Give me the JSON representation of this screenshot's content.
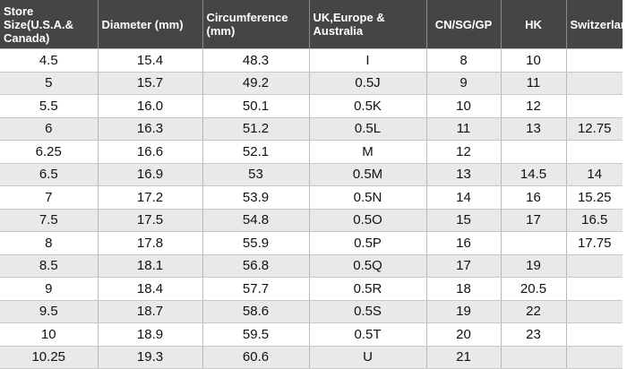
{
  "headers": {
    "store_size": "Store Size(U.S.A.& Canada)",
    "diameter": "Diameter (mm)",
    "circumference": "Circumference (mm)",
    "uk": "UK,Europe & Australia",
    "cn": "CN/SG/GP",
    "hk": "HK",
    "switzerland": "Switzerland"
  },
  "rows": [
    {
      "store": "4.5",
      "diameter": "15.4",
      "circumference": "48.3",
      "uk": "I",
      "cn": "8",
      "hk": "10",
      "ch": ""
    },
    {
      "store": "5",
      "diameter": "15.7",
      "circumference": "49.2",
      "uk": "0.5J",
      "cn": "9",
      "hk": "11",
      "ch": ""
    },
    {
      "store": "5.5",
      "diameter": "16.0",
      "circumference": "50.1",
      "uk": "0.5K",
      "cn": "10",
      "hk": "12",
      "ch": ""
    },
    {
      "store": "6",
      "diameter": "16.3",
      "circumference": "51.2",
      "uk": "0.5L",
      "cn": "11",
      "hk": "13",
      "ch": "12.75"
    },
    {
      "store": "6.25",
      "diameter": "16.6",
      "circumference": "52.1",
      "uk": "M",
      "cn": "12",
      "hk": "",
      "ch": ""
    },
    {
      "store": "6.5",
      "diameter": "16.9",
      "circumference": "53",
      "uk": "0.5M",
      "cn": "13",
      "hk": "14.5",
      "ch": "14"
    },
    {
      "store": "7",
      "diameter": "17.2",
      "circumference": "53.9",
      "uk": "0.5N",
      "cn": "14",
      "hk": "16",
      "ch": "15.25"
    },
    {
      "store": "7.5",
      "diameter": "17.5",
      "circumference": "54.8",
      "uk": "0.5O",
      "cn": "15",
      "hk": "17",
      "ch": "16.5"
    },
    {
      "store": "8",
      "diameter": "17.8",
      "circumference": "55.9",
      "uk": "0.5P",
      "cn": "16",
      "hk": "",
      "ch": "17.75"
    },
    {
      "store": "8.5",
      "diameter": "18.1",
      "circumference": "56.8",
      "uk": "0.5Q",
      "cn": "17",
      "hk": "19",
      "ch": ""
    },
    {
      "store": "9",
      "diameter": "18.4",
      "circumference": "57.7",
      "uk": "0.5R",
      "cn": "18",
      "hk": "20.5",
      "ch": ""
    },
    {
      "store": "9.5",
      "diameter": "18.7",
      "circumference": "58.6",
      "uk": "0.5S",
      "cn": "19",
      "hk": "22",
      "ch": ""
    },
    {
      "store": "10",
      "diameter": "18.9",
      "circumference": "59.5",
      "uk": "0.5T",
      "cn": "20",
      "hk": "23",
      "ch": ""
    },
    {
      "store": "10.25",
      "diameter": "19.3",
      "circumference": "60.6",
      "uk": "U",
      "cn": "21",
      "hk": "",
      "ch": ""
    }
  ]
}
